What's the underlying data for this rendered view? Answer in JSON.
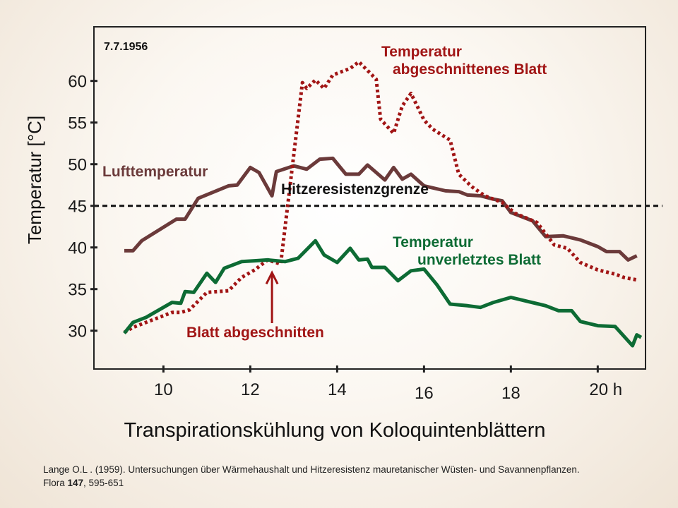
{
  "chart_data": {
    "type": "line",
    "title": "Transpirationskühlung von Koloquintenblättern",
    "date": "7.7.1956",
    "ylabel": "Temperatur [°C]",
    "xlim": [
      8.4,
      21.1
    ],
    "ylim": [
      25.4,
      66.5
    ],
    "x_ticks": [
      {
        "value": 10,
        "label": "10"
      },
      {
        "value": 12,
        "label": "12"
      },
      {
        "value": 14,
        "label": "14"
      },
      {
        "value": 16,
        "label": "16"
      },
      {
        "value": 18,
        "label": "18"
      },
      {
        "value": 20,
        "label": "20 h"
      }
    ],
    "y_ticks": [
      {
        "value": 30,
        "label": "30"
      },
      {
        "value": 35,
        "label": "35"
      },
      {
        "value": 40,
        "label": "40"
      },
      {
        "value": 45,
        "label": "45"
      },
      {
        "value": 50,
        "label": "50"
      },
      {
        "value": 55,
        "label": "55"
      },
      {
        "value": 60,
        "label": "60"
      }
    ],
    "threshold": {
      "label": "Hitzeresistenzgrenze",
      "value": 45,
      "color": "#111111"
    },
    "series": [
      {
        "name": "Lufttemperatur",
        "color": "#6b3a3a",
        "style": "solid",
        "x": [
          9.1,
          9.3,
          9.5,
          10.3,
          10.5,
          10.8,
          11.5,
          11.7,
          12.0,
          12.2,
          12.5,
          12.6,
          13.0,
          13.3,
          13.6,
          13.9,
          14.2,
          14.5,
          14.7,
          15.1,
          15.3,
          15.5,
          15.7,
          16.0,
          16.5,
          16.8,
          17.0,
          17.3,
          17.6,
          17.8,
          18.0,
          18.5,
          18.8,
          19.2,
          19.6,
          20.0,
          20.2,
          20.5,
          20.7,
          20.9
        ],
        "values": [
          39.6,
          39.6,
          40.8,
          43.4,
          43.4,
          45.9,
          47.4,
          47.5,
          49.6,
          49.0,
          46.2,
          49.1,
          49.8,
          49.4,
          50.6,
          50.7,
          48.8,
          48.8,
          49.9,
          48.1,
          49.6,
          48.2,
          48.8,
          47.4,
          46.8,
          46.7,
          46.3,
          46.2,
          45.8,
          45.6,
          44.2,
          43.2,
          41.3,
          41.4,
          40.9,
          40.1,
          39.5,
          39.5,
          38.5,
          39.0
        ]
      },
      {
        "name": "Temperatur abgeschnittenes Blatt",
        "color": "#a11515",
        "style": "dotted",
        "x": [
          9.1,
          9.3,
          9.6,
          10.2,
          10.4,
          10.6,
          11.0,
          11.5,
          11.8,
          12.1,
          12.4,
          12.7,
          13.2,
          13.3,
          13.5,
          13.7,
          13.9,
          14.3,
          14.5,
          14.9,
          15.0,
          15.3,
          15.5,
          15.7,
          16.0,
          16.2,
          16.6,
          16.8,
          17.1,
          17.4,
          17.8,
          18.1,
          18.6,
          19.0,
          19.3,
          19.6,
          20.0,
          20.4,
          20.6,
          20.9
        ],
        "values": [
          29.8,
          30.4,
          31.0,
          32.2,
          32.2,
          32.5,
          34.6,
          34.8,
          36.4,
          37.3,
          38.5,
          38.0,
          59.8,
          59.1,
          60.1,
          59.1,
          60.7,
          61.5,
          62.3,
          60.2,
          55.4,
          53.7,
          57.0,
          58.5,
          55.3,
          54.2,
          52.9,
          48.8,
          47.3,
          46.2,
          45.4,
          44.1,
          43.0,
          40.3,
          39.9,
          38.2,
          37.3,
          36.8,
          36.4,
          36.1
        ]
      },
      {
        "name": "Temperatur unverletztes Blatt",
        "color": "#0d6b34",
        "style": "solid",
        "x": [
          9.1,
          9.3,
          9.6,
          10.2,
          10.4,
          10.5,
          10.7,
          11.0,
          11.2,
          11.4,
          11.8,
          12.1,
          12.4,
          12.8,
          13.1,
          13.5,
          13.7,
          14.0,
          14.3,
          14.5,
          14.7,
          14.8,
          15.1,
          15.4,
          15.7,
          16.0,
          16.3,
          16.6,
          17.0,
          17.3,
          17.6,
          18.0,
          18.4,
          18.8,
          19.1,
          19.4,
          19.6,
          20.0,
          20.4,
          20.8,
          20.9,
          21.0
        ],
        "values": [
          29.7,
          31.0,
          31.6,
          33.4,
          33.3,
          34.7,
          34.6,
          36.9,
          35.8,
          37.5,
          38.3,
          38.4,
          38.5,
          38.3,
          38.7,
          40.8,
          39.1,
          38.2,
          39.9,
          38.5,
          38.6,
          37.6,
          37.6,
          36.0,
          37.2,
          37.4,
          35.5,
          33.2,
          33.0,
          32.8,
          33.4,
          34.0,
          33.5,
          33.0,
          32.4,
          32.4,
          31.1,
          30.6,
          30.5,
          28.2,
          29.5,
          29.2
        ]
      }
    ],
    "annotations": {
      "lufttemperatur": "Lufttemperatur",
      "threshold": "Hitzeresistenzgrenze",
      "cut_leaf_1": "Temperatur",
      "cut_leaf_2": "abgeschnittenes Blatt",
      "intact_leaf_1": "Temperatur",
      "intact_leaf_2": "unverletztes Blatt",
      "cut_event": "Blatt abgeschnitten"
    },
    "cut_event_x": 12.5,
    "grid": false
  },
  "citation": {
    "line1": "Lange O.L . (1959). Untersuchungen über Wärmehaushalt und Hitzeresistenz mauretanischer Wüsten- und Savannenpflanzen.",
    "journal": "Flora ",
    "volume": "147",
    "pages": ", 595-651"
  }
}
